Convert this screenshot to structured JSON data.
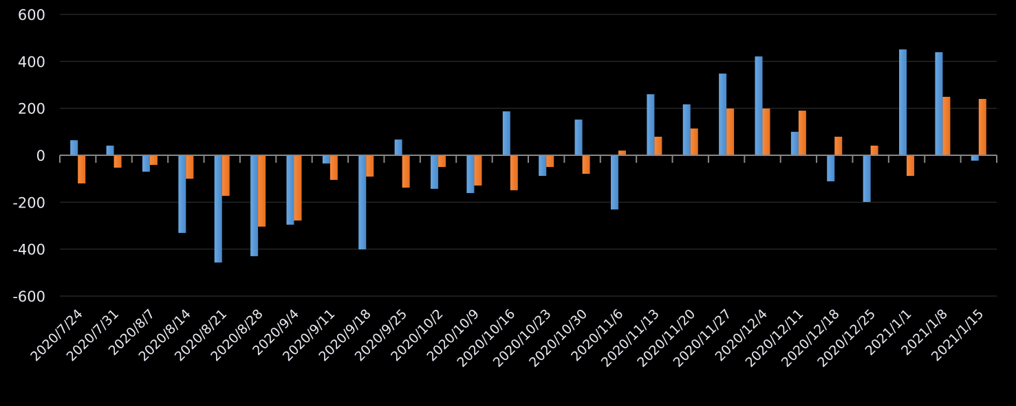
{
  "chart_data": {
    "type": "bar",
    "title": "",
    "xlabel": "",
    "ylabel": "",
    "ylim": [
      -600,
      600
    ],
    "yticks": [
      600,
      400,
      200,
      0,
      -200,
      -400,
      -600
    ],
    "grid": true,
    "legend": "none",
    "categories": [
      "2020/7/24",
      "2020/7/31",
      "2020/8/7",
      "2020/8/14",
      "2020/8/21",
      "2020/8/28",
      "2020/9/4",
      "2020/9/11",
      "2020/9/18",
      "2020/9/25",
      "2020/10/2",
      "2020/10/9",
      "2020/10/16",
      "2020/10/23",
      "2020/10/30",
      "2020/11/6",
      "2020/11/13",
      "2020/11/20",
      "2020/11/27",
      "2020/12/4",
      "2020/12/11",
      "2020/12/18",
      "2020/12/25",
      "2021/1/1",
      "2021/1/8",
      "2021/1/15"
    ],
    "series": [
      {
        "color": "#5b9bd5",
        "values": [
          64,
          41,
          -70,
          -331,
          -457,
          -430,
          -296,
          -35,
          -401,
          67,
          -143,
          -161,
          187,
          -88,
          152,
          -231,
          260,
          217,
          348,
          421,
          100,
          -111,
          -199,
          451,
          439,
          -23
        ]
      },
      {
        "color": "#ed7d31",
        "values": [
          -120,
          -53,
          -41,
          -100,
          -173,
          -304,
          -278,
          -105,
          -91,
          -138,
          -50,
          -129,
          -149,
          -50,
          -79,
          20,
          79,
          114,
          199,
          199,
          190,
          79,
          41,
          -88,
          249,
          240
        ]
      }
    ]
  }
}
